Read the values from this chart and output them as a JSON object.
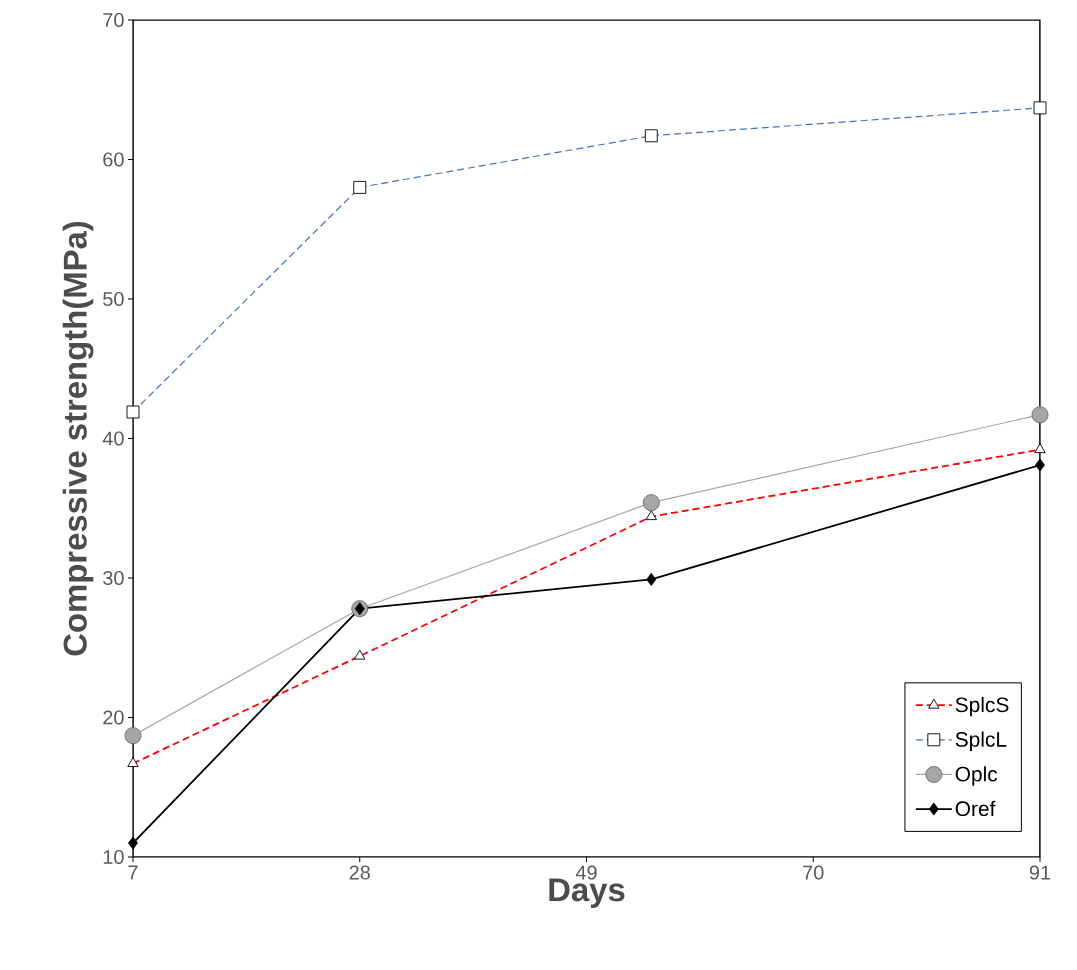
{
  "chart_data": {
    "type": "line",
    "xlabel": "Days",
    "ylabel": "Compressive strength(MPa)",
    "xlim": [
      7,
      91
    ],
    "xticks": [
      7,
      28,
      49,
      70,
      91
    ],
    "ylim": [
      10,
      70
    ],
    "yticks": [
      10,
      20,
      30,
      40,
      50,
      60,
      70
    ],
    "grid": false,
    "legend": "bottom right",
    "series": [
      {
        "name": "SplcS",
        "color": "#ff0000",
        "marker": "triangle",
        "line_style": "dashed",
        "x": [
          7,
          28,
          55,
          91
        ],
        "values": [
          16.7,
          24.4,
          34.4,
          39.2
        ]
      },
      {
        "name": "SplcL",
        "color": "#4472c4",
        "marker": "square",
        "line_style": "dashed",
        "x": [
          7,
          28,
          55,
          91
        ],
        "values": [
          41.9,
          58.0,
          61.7,
          63.7
        ]
      },
      {
        "name": "Oplc",
        "color": "#a6a6a6",
        "marker": "circle",
        "line_style": "solid",
        "x": [
          7,
          28,
          55,
          91
        ],
        "values": [
          18.7,
          27.8,
          35.4,
          41.7
        ]
      },
      {
        "name": "Oref",
        "color": "#000000",
        "marker": "diamond",
        "line_style": "solid",
        "x": [
          7,
          28,
          55,
          91
        ],
        "values": [
          11.0,
          27.8,
          29.9,
          38.1
        ]
      }
    ]
  }
}
